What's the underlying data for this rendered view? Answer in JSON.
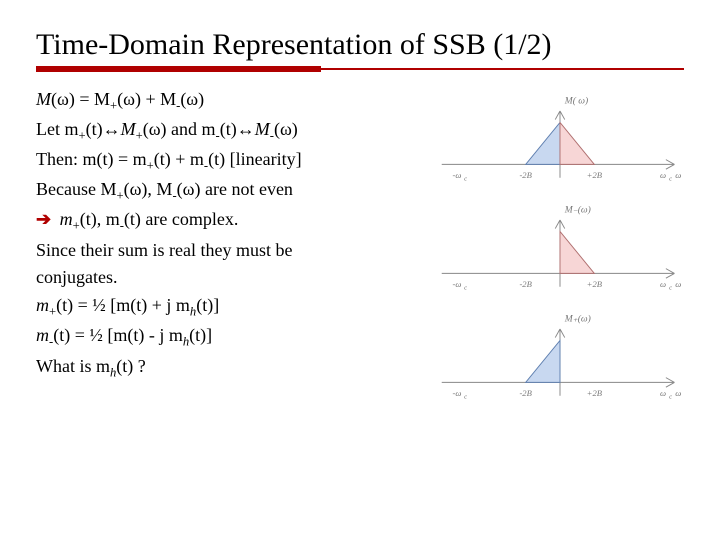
{
  "title": "Time-Domain Representation of SSB (1/2)",
  "lines": {
    "l1a": "M",
    "l1b": "(ω) = M",
    "l1c": "(ω) + M",
    "l1d": "(ω)",
    "l2a": "Let m",
    "l2b": "(t)",
    "l2arr": "↔",
    "l2c": "M",
    "l2d": "(ω) and m",
    "l2e": "(t)",
    "l2f": "M",
    "l2g": "(ω)",
    "l3a": "Then: m",
    "l3b": "(t) = m",
    "l3c": "(t) + m",
    "l3d": "(t) [linearity]",
    "l4a": "Because M",
    "l4b": "(ω), M",
    "l4c": "(ω) are not even",
    "l5arrow": "➔",
    "l5a": " m",
    "l5b": "(t), m",
    "l5c": "(t) are complex.",
    "l6": "Since their sum is real they must be",
    "l7": "conjugates.",
    "l8a": "m",
    "l8b": "(t) = ½ [m",
    "l8c": "(t) + j m",
    "l8d": "(t)]",
    "l9a": "m",
    "l9b": "(t)  = ½ [m",
    "l9c": "(t) - j m",
    "l9d": "(t)]",
    "l10a": "What is m",
    "l10b": "(t) ?"
  },
  "sub": {
    "plus": "+",
    "minus": "-",
    "h": "h"
  },
  "figs": {
    "f1": {
      "label": "M( ω)",
      "ticks": {
        "nwc": "-ω",
        "n2b": "-2B",
        "p2b": "+2B",
        "pwc": "ω",
        "c": "c",
        "axis": "ω"
      },
      "colors": {
        "left": "#c8d8f0",
        "right": "#f7d6d6",
        "leftStroke": "#6080b0",
        "rightStroke": "#b07070"
      }
    },
    "f2": {
      "label": "M₋(ω)",
      "ticks": {
        "nwc": "-ω",
        "n2b": "-2B",
        "p2b": "+2B",
        "pwc": "ω",
        "c": "c",
        "axis": "ω"
      }
    },
    "f3": {
      "label": "M₊(ω)",
      "ticks": {
        "nwc": "-ω",
        "n2b": "-2B",
        "p2b": "+2B",
        "pwc": "ω",
        "c": "c",
        "axis": "ω"
      }
    }
  },
  "style": {
    "accent": "#b00000",
    "axisColor": "#888888",
    "labelColor": "#777777",
    "pinkFill": "#f7d6d6",
    "blueFill": "#c8d8f0",
    "bg": "#ffffff",
    "bodyFontSize": 18,
    "titleFontSize": 30
  },
  "geom": {
    "vw": 260,
    "vh": 110,
    "axisY": 78,
    "yAxisX": 130,
    "peakH": 44,
    "xNwc": 22,
    "xN2b": 94,
    "xP2b": 166,
    "xPwc": 238,
    "arrowW": 5,
    "arrowL": 9
  }
}
